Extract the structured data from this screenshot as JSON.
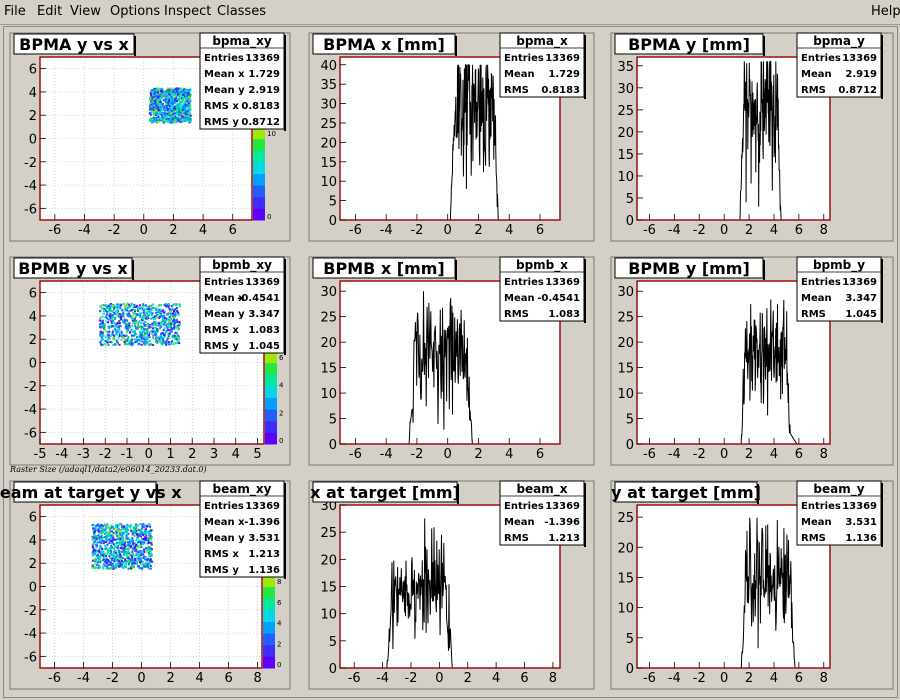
{
  "menu": {
    "file": "File",
    "edit": "Edit",
    "view": "View",
    "options": "Options",
    "inspect": "Inspect",
    "classes": "Classes",
    "help": "Help"
  },
  "raster_label": "Raster Size (/adaql1/data2/e06014_20233.dat.0)",
  "colors": {
    "axis_frame": "#990000",
    "hist_line": "#000000",
    "pad_bg": "#ffffff",
    "canvas_bg": "#d4d0c8"
  },
  "chart_data": [
    {
      "id": "bpma_xy",
      "type": "heatmap",
      "title": "BPMA y vs x",
      "xlim": [
        -7,
        7.3
      ],
      "ylim": [
        -7,
        7
      ],
      "xticks": [
        -6,
        -4,
        -2,
        0,
        2,
        4,
        6
      ],
      "yticks": [
        -6,
        -4,
        -2,
        0,
        2,
        4,
        6
      ],
      "grid": true,
      "blob": {
        "mean_x": 1.729,
        "mean_y": 2.919,
        "rms_x": 0.8183,
        "rms_y": 0.8712
      },
      "palette_ticks": [
        "0",
        "10"
      ],
      "stats": {
        "name": "bpma_xy",
        "rows": [
          [
            "Entries",
            "13369"
          ],
          [
            "Mean x",
            "1.729"
          ],
          [
            "Mean y",
            "2.919"
          ],
          [
            "RMS x",
            "0.8183"
          ],
          [
            "RMS y",
            "0.8712"
          ]
        ]
      }
    },
    {
      "id": "bpma_x",
      "type": "line",
      "title": "BPMA x [mm]",
      "xlim": [
        -7,
        7.3
      ],
      "ylim": [
        0,
        42
      ],
      "xticks": [
        -6,
        -4,
        -2,
        0,
        2,
        4,
        6
      ],
      "yticks": [
        0,
        5,
        10,
        15,
        20,
        25,
        30,
        35,
        40
      ],
      "shape": {
        "mean": 1.729,
        "rms": 0.8183,
        "peak": 30,
        "max": 40
      },
      "stats": {
        "name": "bpma_x",
        "rows": [
          [
            "Entries",
            "13369"
          ],
          [
            "Mean",
            "1.729"
          ],
          [
            "RMS",
            "0.8183"
          ]
        ]
      }
    },
    {
      "id": "bpma_y",
      "type": "line",
      "title": "BPMA y [mm]",
      "xlim": [
        -7,
        8.5
      ],
      "ylim": [
        0,
        37
      ],
      "xticks": [
        -6,
        -4,
        -2,
        0,
        2,
        4,
        6,
        8
      ],
      "yticks": [
        0,
        5,
        10,
        15,
        20,
        25,
        30,
        35
      ],
      "shape": {
        "mean": 2.919,
        "rms": 0.8712,
        "peak": 25,
        "max": 36
      },
      "stats": {
        "name": "bpma_y",
        "rows": [
          [
            "Entries",
            "13369"
          ],
          [
            "Mean",
            "2.919"
          ],
          [
            "RMS",
            "0.8712"
          ]
        ]
      }
    },
    {
      "id": "bpmb_xy",
      "type": "heatmap",
      "title": "BPMB y vs x",
      "xlim": [
        -5,
        5.3
      ],
      "ylim": [
        -7,
        7
      ],
      "xticks": [
        -5,
        -4,
        -3,
        -2,
        -1,
        0,
        1,
        2,
        3,
        4,
        5
      ],
      "yticks": [
        -6,
        -4,
        -2,
        0,
        2,
        4,
        6
      ],
      "grid": true,
      "blob": {
        "mean_x": -0.4541,
        "mean_y": 3.347,
        "rms_x": 1.083,
        "rms_y": 1.045
      },
      "palette_ticks": [
        "0",
        "2",
        "4",
        "6"
      ],
      "stats": {
        "name": "bpmb_xy",
        "rows": [
          [
            "Entries",
            "13369"
          ],
          [
            "Mean x",
            "-0.4541"
          ],
          [
            "Mean y",
            "3.347"
          ],
          [
            "RMS x",
            "1.083"
          ],
          [
            "RMS y",
            "1.045"
          ]
        ]
      }
    },
    {
      "id": "bpmb_x",
      "type": "line",
      "title": "BPMB x [mm]",
      "xlim": [
        -7,
        7.3
      ],
      "ylim": [
        0,
        32
      ],
      "xticks": [
        -6,
        -4,
        -2,
        0,
        2,
        4,
        6
      ],
      "yticks": [
        0,
        5,
        10,
        15,
        20,
        25,
        30
      ],
      "shape": {
        "mean": -0.4541,
        "rms": 1.083,
        "peak": 18,
        "max": 30
      },
      "stats": {
        "name": "bpmb_x",
        "rows": [
          [
            "Entries",
            "13369"
          ],
          [
            "Mean",
            "-0.4541"
          ],
          [
            "RMS",
            "1.083"
          ]
        ]
      }
    },
    {
      "id": "bpmb_y",
      "type": "line",
      "title": "BPMB y [mm]",
      "xlim": [
        -7,
        8.5
      ],
      "ylim": [
        0,
        32
      ],
      "xticks": [
        -6,
        -4,
        -2,
        0,
        2,
        4,
        6,
        8
      ],
      "yticks": [
        0,
        5,
        10,
        15,
        20,
        25,
        30
      ],
      "shape": {
        "mean": 3.347,
        "rms": 1.045,
        "peak": 18,
        "max": 30
      },
      "stats": {
        "name": "bpmb_y",
        "rows": [
          [
            "Entries",
            "13369"
          ],
          [
            "Mean",
            "3.347"
          ],
          [
            "RMS",
            "1.045"
          ]
        ]
      }
    },
    {
      "id": "beam_xy",
      "type": "heatmap",
      "title": "beam at target y vs x",
      "xlim": [
        -7,
        8.3
      ],
      "ylim": [
        -7,
        7
      ],
      "xticks": [
        -6,
        -4,
        -2,
        0,
        2,
        4,
        6,
        8
      ],
      "yticks": [
        -6,
        -4,
        -2,
        0,
        2,
        4,
        6
      ],
      "grid": true,
      "blob": {
        "mean_x": -1.396,
        "mean_y": 3.531,
        "rms_x": 1.213,
        "rms_y": 1.136
      },
      "palette_ticks": [
        "0",
        "2",
        "4",
        "6",
        "8"
      ],
      "stats": {
        "name": "beam_xy",
        "rows": [
          [
            "Entries",
            "13369"
          ],
          [
            "Mean x",
            "-1.396"
          ],
          [
            "Mean y",
            "3.531"
          ],
          [
            "RMS x",
            "1.213"
          ],
          [
            "RMS y",
            "1.136"
          ]
        ]
      }
    },
    {
      "id": "beam_x",
      "type": "line",
      "title": "x at target [mm]",
      "xlim": [
        -7,
        8.5
      ],
      "ylim": [
        0,
        30
      ],
      "xticks": [
        -6,
        -4,
        -2,
        0,
        2,
        4,
        6,
        8
      ],
      "yticks": [
        0,
        5,
        10,
        15,
        20,
        25,
        30
      ],
      "shape": {
        "mean": -1.396,
        "rms": 1.213,
        "peak": 15,
        "max": 28
      },
      "stats": {
        "name": "beam_x",
        "rows": [
          [
            "Entries",
            "13369"
          ],
          [
            "Mean",
            "-1.396"
          ],
          [
            "RMS",
            "1.213"
          ]
        ]
      }
    },
    {
      "id": "beam_y",
      "type": "line",
      "title": "y at target [mm]",
      "xlim": [
        -7,
        8.5
      ],
      "ylim": [
        0,
        27
      ],
      "xticks": [
        -6,
        -4,
        -2,
        0,
        2,
        4,
        6,
        8
      ],
      "yticks": [
        0,
        5,
        10,
        15,
        20,
        25
      ],
      "shape": {
        "mean": 3.531,
        "rms": 1.136,
        "peak": 15,
        "max": 25
      },
      "stats": {
        "name": "beam_y",
        "rows": [
          [
            "Entries",
            "13369"
          ],
          [
            "Mean",
            "3.531"
          ],
          [
            "RMS",
            "1.136"
          ]
        ]
      }
    }
  ]
}
